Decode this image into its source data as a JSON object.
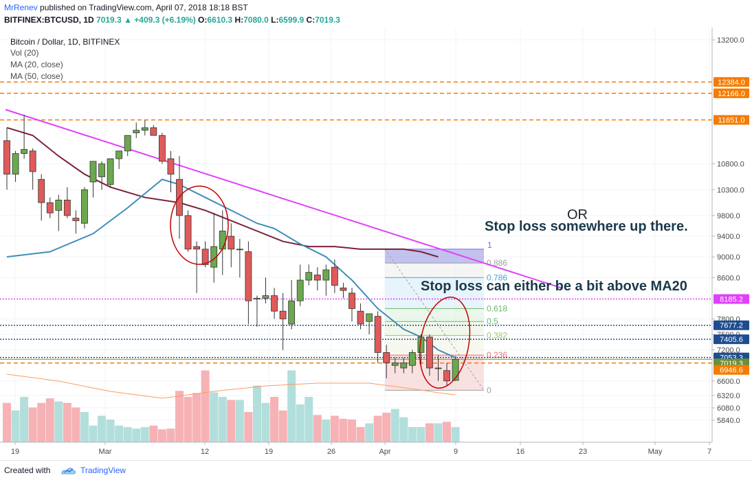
{
  "header": {
    "author": "MrRenev",
    "published_text": " published on TradingView.com, April 07, 2018 18:18 BST",
    "symbol_line": "BITFINEX:BTCUSD, 1D",
    "close_change_value": "7019.3",
    "change_text": "+409.3 (+6.19%)",
    "ohlc": {
      "o_label": "O:",
      "o": "6610.3",
      "h_label": "H:",
      "h": "7080.0",
      "l_label": "L:",
      "l": "6599.9",
      "c_label": "C:",
      "c": "7019.3"
    }
  },
  "legend": {
    "title": "Bitcoin / Dollar, 1D, BITFINEX",
    "items": [
      "Vol (20)",
      "MA (20, close)",
      "MA (50, close)"
    ]
  },
  "footer": {
    "created_with": "Created with",
    "brand": "TradingView"
  },
  "chart_data": {
    "type": "candlestick",
    "title": "Bitcoin / Dollar, 1D, BITFINEX",
    "price_range": [
      5650,
      13400
    ],
    "y_ticks": [
      13200,
      10800,
      10300,
      9800,
      9400,
      9000,
      8600,
      7800,
      7500,
      7200,
      6600,
      6320,
      6080,
      5840
    ],
    "x_ticks": [
      "19",
      "Mar",
      "12",
      "19",
      "26",
      "Apr",
      "9",
      "16",
      "23",
      "May",
      "7"
    ],
    "candles": [
      [
        11250,
        11500,
        10300,
        10600
      ],
      [
        10600,
        11050,
        10450,
        11000
      ],
      [
        11000,
        11750,
        10900,
        11080
      ],
      [
        11050,
        11100,
        10300,
        10650
      ],
      [
        10500,
        10600,
        9700,
        10050
      ],
      [
        10050,
        10150,
        9750,
        9850
      ],
      [
        9900,
        10200,
        9500,
        10100
      ],
      [
        10100,
        10350,
        9750,
        9800
      ],
      [
        9750,
        9900,
        9450,
        9700
      ],
      [
        9650,
        10350,
        9550,
        10300
      ],
      [
        10450,
        10800,
        10150,
        10850
      ],
      [
        10550,
        10850,
        10300,
        10800
      ],
      [
        10400,
        10900,
        10350,
        10900
      ],
      [
        10900,
        11000,
        10700,
        11050
      ],
      [
        11050,
        11350,
        10950,
        11350
      ],
      [
        11400,
        11600,
        11300,
        11450
      ],
      [
        11450,
        11650,
        11350,
        11500
      ],
      [
        11500,
        11550,
        11350,
        11350
      ],
      [
        11350,
        11400,
        10800,
        10850
      ],
      [
        10900,
        11050,
        10250,
        10600
      ],
      [
        10500,
        10950,
        9350,
        9800
      ],
      [
        9800,
        9900,
        9100,
        9150
      ],
      [
        9200,
        9300,
        8300,
        9150
      ],
      [
        9150,
        9300,
        8800,
        8850
      ],
      [
        8800,
        9850,
        8500,
        9200
      ],
      [
        9150,
        9900,
        8650,
        9500
      ],
      [
        9400,
        9650,
        8800,
        9150
      ],
      [
        9150,
        9350,
        8600,
        9150
      ],
      [
        9100,
        9300,
        7700,
        8150
      ],
      [
        8200,
        8250,
        7650,
        8200
      ],
      [
        8200,
        8600,
        8100,
        8250
      ],
      [
        8250,
        8400,
        7800,
        7950
      ],
      [
        7950,
        8300,
        7200,
        7800
      ],
      [
        7700,
        8550,
        7600,
        8150
      ],
      [
        8150,
        8850,
        8050,
        8550
      ],
      [
        8550,
        8850,
        8450,
        8700
      ],
      [
        8650,
        8800,
        8350,
        8550
      ],
      [
        8550,
        8850,
        8250,
        8750
      ],
      [
        8800,
        8950,
        8300,
        8450
      ],
      [
        8400,
        8500,
        8200,
        8350
      ],
      [
        8300,
        8400,
        7750,
        8000
      ],
      [
        7950,
        8100,
        7600,
        7700
      ],
      [
        7750,
        7850,
        7500,
        7900
      ],
      [
        7850,
        7950,
        6950,
        7150
      ],
      [
        7150,
        7300,
        6650,
        6950
      ],
      [
        6900,
        7050,
        6750,
        6950
      ],
      [
        6850,
        7050,
        6750,
        6950
      ],
      [
        6900,
        7200,
        6750,
        7150
      ],
      [
        7150,
        7500,
        6900,
        7450
      ],
      [
        7450,
        7500,
        6700,
        6850
      ],
      [
        6850,
        7100,
        6600,
        6850
      ],
      [
        6800,
        6950,
        6500,
        6600
      ],
      [
        6610.3,
        7080,
        6599.9,
        7019.3
      ]
    ],
    "volumes_relative": [
      0.52,
      0.42,
      0.6,
      0.46,
      0.52,
      0.58,
      0.54,
      0.52,
      0.46,
      0.4,
      0.22,
      0.35,
      0.3,
      0.22,
      0.2,
      0.18,
      0.2,
      0.22,
      0.17,
      0.18,
      0.68,
      0.6,
      0.65,
      0.95,
      0.66,
      0.6,
      0.56,
      0.56,
      0.4,
      0.75,
      0.52,
      0.6,
      0.42,
      0.95,
      0.5,
      0.6,
      0.36,
      0.3,
      0.35,
      0.31,
      0.3,
      0.2,
      0.25,
      0.35,
      0.39,
      0.44,
      0.33,
      0.2,
      0.2,
      0.25,
      0.25,
      0.27,
      0.2
    ],
    "ma20": [
      [
        0,
        9000
      ],
      [
        5,
        9100
      ],
      [
        10,
        9450
      ],
      [
        14,
        9950
      ],
      [
        18,
        10500
      ],
      [
        20,
        10400
      ],
      [
        23,
        10150
      ],
      [
        26,
        9900
      ],
      [
        29,
        9650
      ],
      [
        31,
        9550
      ],
      [
        34,
        9250
      ],
      [
        37,
        9000
      ],
      [
        40,
        8550
      ],
      [
        43,
        8000
      ],
      [
        46,
        7600
      ],
      [
        48,
        7450
      ],
      [
        50,
        7200
      ],
      [
        52,
        7050
      ]
    ],
    "ma50": [
      [
        0,
        11500
      ],
      [
        3,
        11350
      ],
      [
        6,
        10950
      ],
      [
        9,
        10600
      ],
      [
        12,
        10350
      ],
      [
        16,
        10150
      ],
      [
        20,
        10050
      ],
      [
        23,
        9900
      ],
      [
        26,
        9700
      ],
      [
        29,
        9500
      ],
      [
        32,
        9300
      ],
      [
        35,
        9200
      ],
      [
        38,
        9200
      ],
      [
        41,
        9150
      ],
      [
        43,
        9150
      ],
      [
        46,
        9150
      ],
      [
        48,
        9100
      ],
      [
        50,
        9000
      ]
    ],
    "trendline": {
      "from": [
        0,
        11850
      ],
      "to": [
        48.5,
        8400
      ],
      "color": "#e040fb"
    },
    "horizontal_levels": [
      {
        "price": 12384.0,
        "label": "12384.0",
        "color": "#f57c00",
        "style": "dashed"
      },
      {
        "price": 12166.0,
        "label": "12166.0",
        "color": "#f57c00",
        "style": "dashed"
      },
      {
        "price": 11651.0,
        "label": "11651.0",
        "color": "#f57c00",
        "style": "dashed"
      },
      {
        "price": 8185.2,
        "label": "8185.2",
        "color": "#e040fb",
        "style": "dotted"
      },
      {
        "price": 7677.2,
        "label": "7677.2",
        "color": "#1e4d8f",
        "style": "dotted"
      },
      {
        "price": 7405.6,
        "label": "7405.6",
        "color": "#1e4d8f",
        "style": "dotted"
      },
      {
        "price": 7053.3,
        "label": "7053.3",
        "color": "#1e4d8f",
        "style": "dotted"
      },
      {
        "price": 7019.3,
        "label": "7019.3",
        "color": "#6d8f3a",
        "style": "solid"
      },
      {
        "price": 6946.6,
        "label": "6946.6",
        "color": "#f57c00",
        "style": "dashed"
      }
    ],
    "fibonacci": {
      "levels": [
        {
          "ratio": "1",
          "price": 9150,
          "color": "#7b68ee"
        },
        {
          "ratio": "0.886",
          "price": 8880,
          "color": "#9e9e9e"
        },
        {
          "ratio": "0.786",
          "price": 8600,
          "color": "#4aa3df"
        },
        {
          "ratio": "0.618",
          "price": 8000,
          "color": "#66bb6a"
        },
        {
          "ratio": "0.5",
          "price": 7750,
          "color": "#66bb6a"
        },
        {
          "ratio": "0.382",
          "price": 7480,
          "color": "#9ccc65"
        },
        {
          "ratio": "0.236",
          "price": 7100,
          "color": "#e57373"
        },
        {
          "ratio": "0",
          "price": 6420,
          "color": "#9e9e9e"
        }
      ]
    },
    "annotations": [
      {
        "text": "OR"
      },
      {
        "text": "Stop loss somewhere up there."
      },
      {
        "text": "Stop loss can either be a bit above MA20"
      }
    ],
    "colors": {
      "up": "#6ba84f",
      "down": "#e05a5a",
      "ma20": "#3d8eb9",
      "ma50": "#7b1f3a",
      "vol_up": "#b2dfdb",
      "vol_down": "#f6b2b5"
    }
  }
}
